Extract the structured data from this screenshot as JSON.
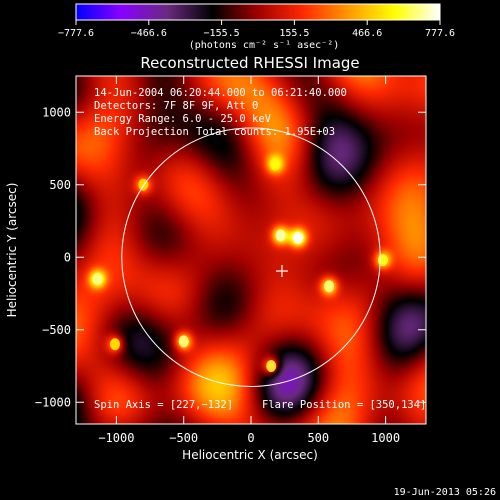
{
  "colorbar": {
    "tick_labels": [
      "−777.6",
      "−466.6",
      "−155.5",
      "155.5",
      "466.6",
      "777.6"
    ],
    "tick_values": [
      -777.6,
      -466.6,
      -155.5,
      155.5,
      466.6,
      777.6
    ],
    "min": -777.6,
    "max": 777.6,
    "units_label": "(photons cm⁻² s⁻¹ asec⁻²)"
  },
  "chart_data": {
    "type": "heatmap",
    "title": "Reconstructed RHESSI Image",
    "xlabel": "Heliocentric X (arcsec)",
    "ylabel": "Heliocentric Y (arcsec)",
    "xlim": [
      -1300,
      1300
    ],
    "ylim": [
      -1150,
      1250
    ],
    "x_ticks": [
      -1000,
      -500,
      0,
      500,
      1000
    ],
    "x_tick_labels": [
      "−1000",
      "−500",
      "0",
      "500",
      "1000"
    ],
    "y_ticks": [
      -1000,
      -500,
      0,
      500,
      1000
    ],
    "y_tick_labels": [
      "−1000",
      "−500",
      "0",
      "500",
      "1000"
    ],
    "grid": false,
    "colormap": [
      "#0000ff",
      "#8a00ff",
      "#6a2a80",
      "#000000",
      "#a00000",
      "#ff2a00",
      "#ff9a00",
      "#ffff00",
      "#ffffff"
    ],
    "solar_disk_radius": 960,
    "flare_position": [
      350,
      134
    ],
    "spin_axis": [
      227,
      -132
    ],
    "cross_marker": [
      230,
      -95
    ],
    "bright_sources": [
      {
        "x": 350,
        "y": 134,
        "value": 700
      },
      {
        "x": 220,
        "y": 150,
        "value": 600
      },
      {
        "x": 580,
        "y": -200,
        "value": 560
      },
      {
        "x": -500,
        "y": -580,
        "value": 560
      },
      {
        "x": -1140,
        "y": -150,
        "value": 560
      },
      {
        "x": 150,
        "y": -750,
        "value": 500
      },
      {
        "x": 980,
        "y": -20,
        "value": 480
      },
      {
        "x": 180,
        "y": 640,
        "value": 450
      },
      {
        "x": -1010,
        "y": -600,
        "value": 430
      },
      {
        "x": -800,
        "y": 500,
        "value": 400
      }
    ]
  },
  "annotations": {
    "time_range": "14-Jun-2004 06:20:44.000 to 06:21:40.000",
    "detectors": "Detectors: 7F 8F 9F, Att 0",
    "energy_range": "Energy Range: 6.0 - 25.0 keV",
    "method": "Back Projection",
    "total_counts": "Total counts: 1.95E+03",
    "spin_axis_label": "Spin Axis = [227,−132]",
    "flare_position_label": "Flare Position = [350,134]"
  },
  "footer": {
    "timestamp": "19-Jun-2013 05:26"
  }
}
